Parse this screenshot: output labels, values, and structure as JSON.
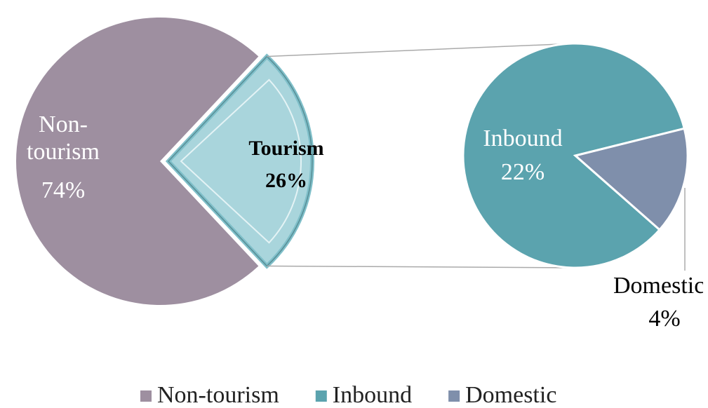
{
  "chart_data": {
    "type": "pie-of-pie",
    "categories": [
      "Non-tourism",
      "Tourism"
    ],
    "values": [
      74,
      26
    ],
    "value_labels": [
      "74%",
      "26%"
    ],
    "colors": [
      "#9e8fa0",
      "#a9d5dc"
    ],
    "secondary": {
      "categories": [
        "Inbound",
        "Domestic"
      ],
      "values": [
        22,
        4
      ],
      "value_labels": [
        "22%",
        "4%"
      ],
      "colors": [
        "#5ba3ae",
        "#7f8fab"
      ]
    },
    "legend": true
  }
}
